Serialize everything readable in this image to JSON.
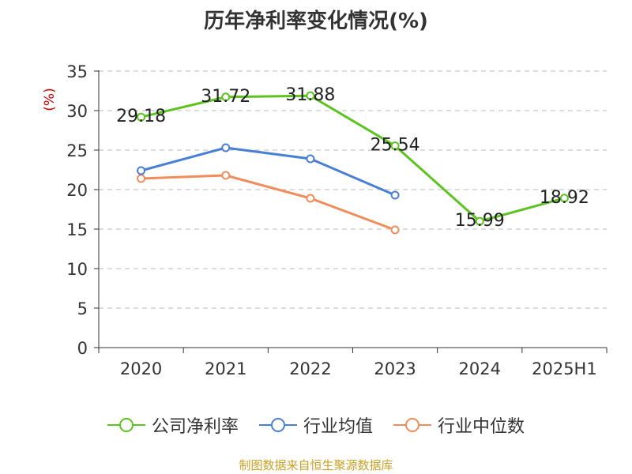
{
  "title": "历年净利率变化情况(%)",
  "source_note": "制图数据来自恒生聚源数据库",
  "colors": {
    "company": "#5cc31f",
    "industry_avg": "#4a7fd6",
    "industry_median": "#f28c5a",
    "unit_label": "#cc0000",
    "grid": "#bbbbbb",
    "axis": "#333333"
  },
  "chart_data": {
    "type": "line",
    "title": "历年净利率变化情况(%)",
    "ylabel": "(%)",
    "xlabel": "",
    "categories": [
      "2020",
      "2021",
      "2022",
      "2023",
      "2024",
      "2025H1"
    ],
    "ylim": [
      0,
      35
    ],
    "yticks": [
      0,
      5,
      10,
      15,
      20,
      25,
      30,
      35
    ],
    "grid": true,
    "legend_position": "bottom",
    "series": [
      {
        "name": "公司净利率",
        "color_key": "company",
        "values": [
          29.18,
          31.72,
          31.88,
          25.54,
          15.99,
          18.92
        ],
        "labels": [
          "29.18",
          "31.72",
          "31.88",
          "25.54",
          "15.99",
          "18.92"
        ]
      },
      {
        "name": "行业均值",
        "color_key": "industry_avg",
        "values": [
          22.4,
          25.3,
          23.9,
          19.3,
          null,
          null
        ]
      },
      {
        "name": "行业中位数",
        "color_key": "industry_median",
        "values": [
          21.4,
          21.8,
          18.9,
          14.9,
          null,
          null
        ]
      }
    ]
  }
}
